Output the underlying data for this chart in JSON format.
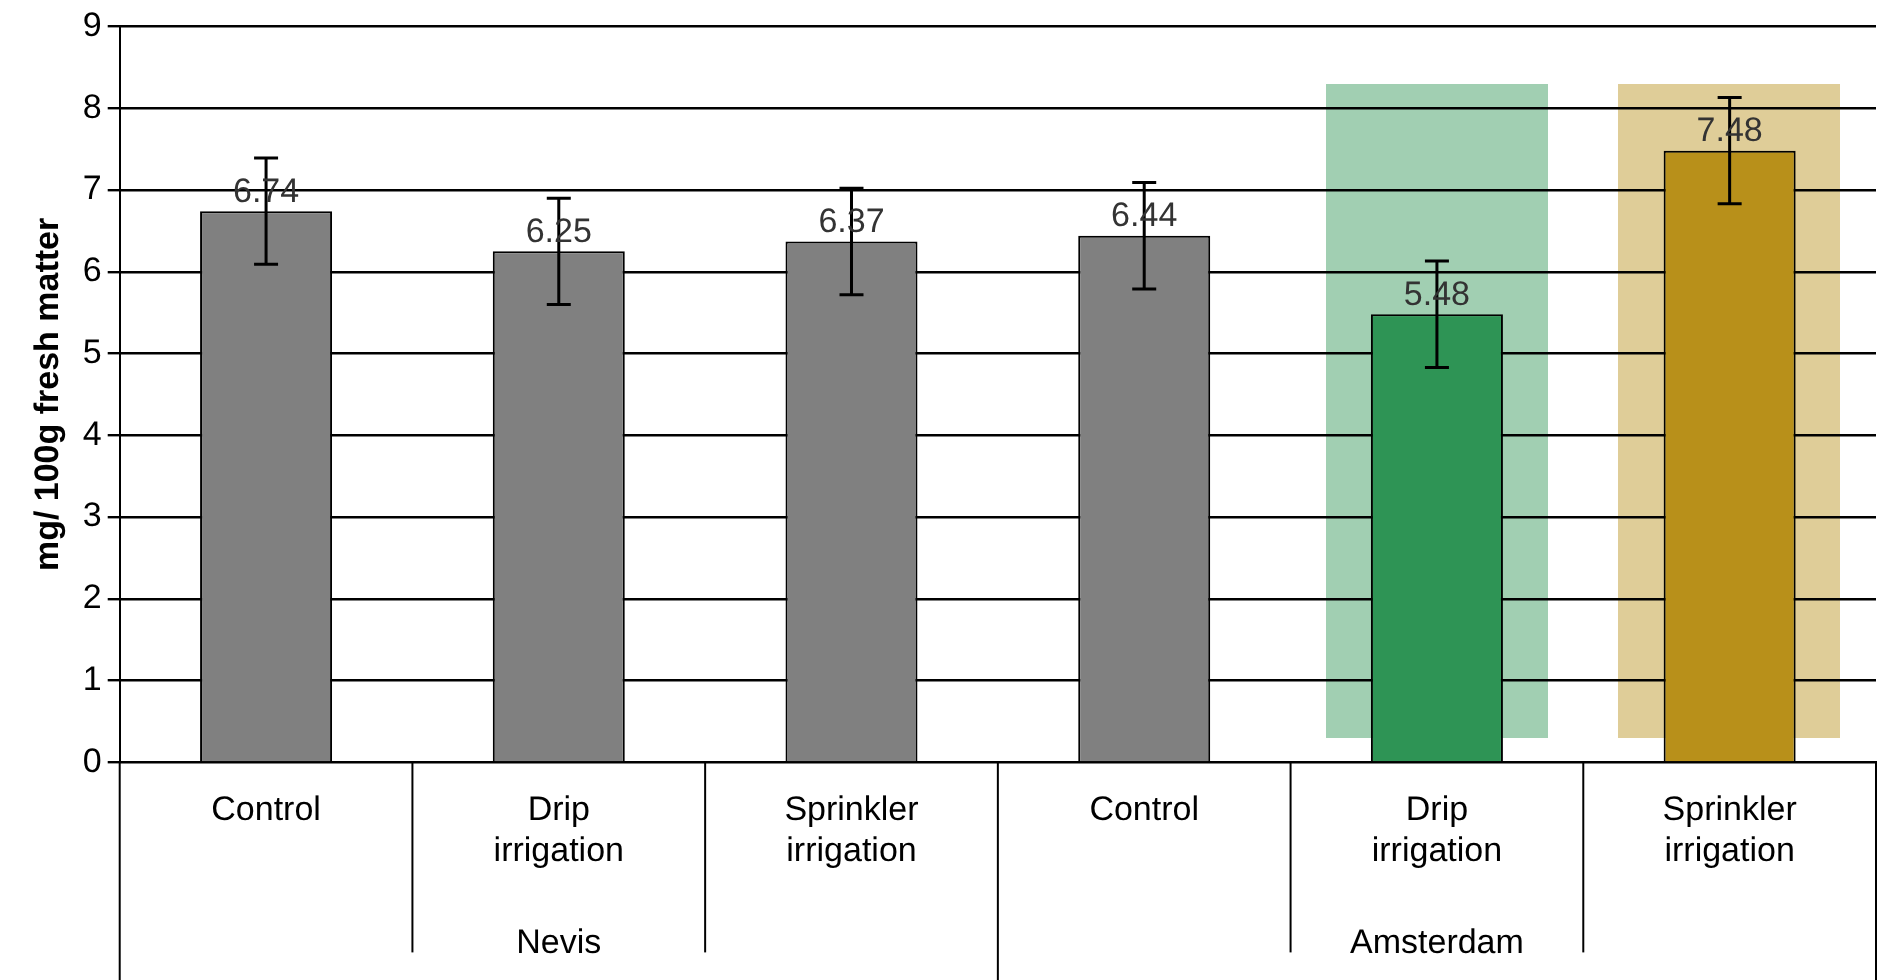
{
  "chart_data": {
    "type": "bar",
    "ylabel": "mg/ 100g fresh matter",
    "categories": [
      "Control",
      "Drip irrigation",
      "Sprinkler irrigation",
      "Control",
      "Drip irrigation",
      "Sprinkler irrigation"
    ],
    "values": [
      6.74,
      6.25,
      6.37,
      6.44,
      5.48,
      7.48
    ],
    "errors": [
      0.65,
      0.65,
      0.65,
      0.65,
      0.65,
      0.65
    ],
    "colors": [
      "#808080",
      "#808080",
      "#808080",
      "#808080",
      "#2e9455",
      "#b8901a"
    ],
    "data_labels": true,
    "annotations": [
      "Nevis",
      "Amsterdam"
    ],
    "ylim": [
      0,
      9
    ],
    "yticks": [
      0,
      1,
      2,
      3,
      4,
      5,
      6,
      7,
      8,
      9
    ],
    "grid": "y",
    "legend": false
  }
}
